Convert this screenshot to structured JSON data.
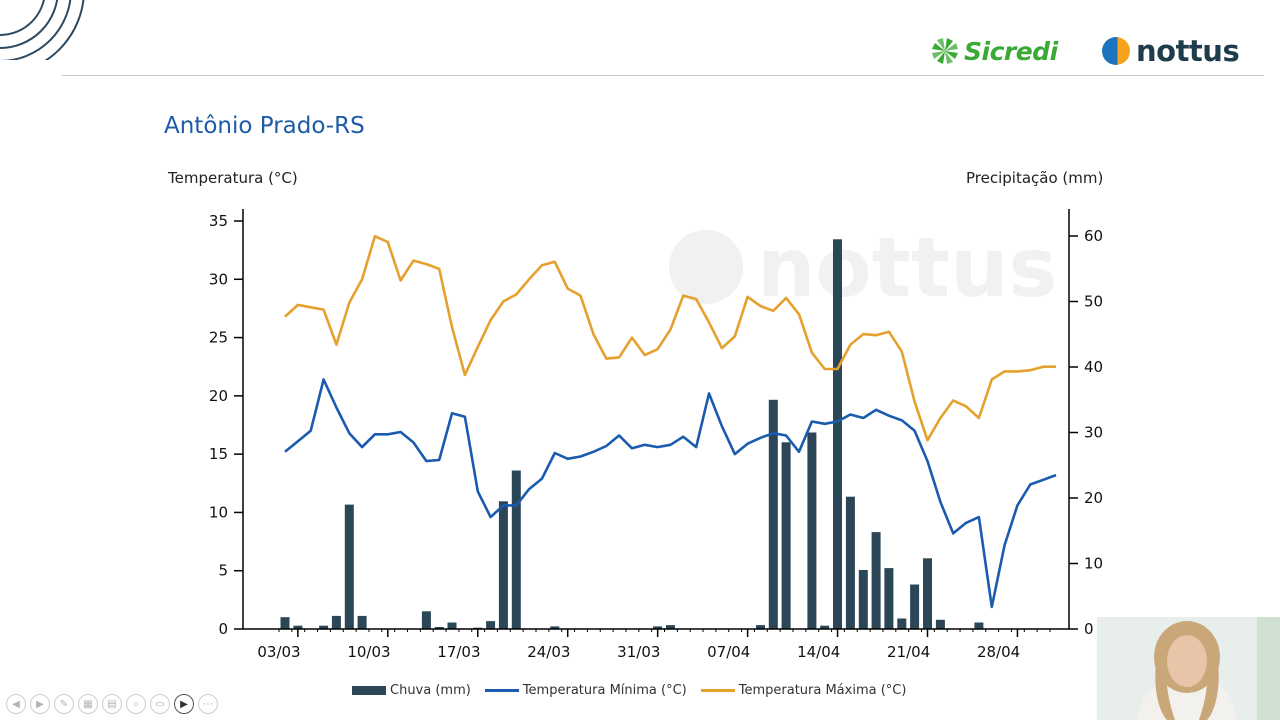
{
  "header": {
    "brand_sicredi": "Sicredi",
    "brand_nottus": "nottus",
    "watermark": "nottus",
    "colors": {
      "sicredi_green": "#3aa935",
      "nottus_navy": "#1f3c4d",
      "nottus_orange": "#f5a31a",
      "nottus_blue": "#1e73be"
    }
  },
  "page": {
    "title": "Antônio Prado-RS"
  },
  "chart_data": {
    "type": "bar+line",
    "title": "Antônio Prado-RS",
    "ylabel_left": "Temperatura (°C)",
    "ylabel_right": "Precipitação (mm)",
    "ylim_left": [
      0,
      35
    ],
    "ylim_right": [
      0,
      63
    ],
    "yticks_left": [
      0,
      5,
      10,
      15,
      20,
      25,
      30,
      35
    ],
    "yticks_right": [
      0,
      10,
      20,
      30,
      40,
      50,
      60
    ],
    "x_tick_labels": [
      "03/03",
      "10/03",
      "17/03",
      "24/03",
      "31/03",
      "07/04",
      "14/04",
      "21/04",
      "28/04"
    ],
    "grid": false,
    "legend_position": "bottom",
    "x_dates": [
      "03/03",
      "04/03",
      "05/03",
      "06/03",
      "07/03",
      "08/03",
      "09/03",
      "10/03",
      "11/03",
      "12/03",
      "13/03",
      "14/03",
      "15/03",
      "16/03",
      "17/03",
      "18/03",
      "19/03",
      "20/03",
      "21/03",
      "22/03",
      "23/03",
      "24/03",
      "25/03",
      "26/03",
      "27/03",
      "28/03",
      "29/03",
      "30/03",
      "31/03",
      "01/04",
      "02/04",
      "03/04",
      "04/04",
      "05/04",
      "06/04",
      "07/04",
      "08/04",
      "09/04",
      "10/04",
      "11/04",
      "12/04",
      "13/04",
      "14/04",
      "15/04",
      "16/04",
      "17/04",
      "18/04",
      "19/04",
      "20/04",
      "21/04",
      "22/04",
      "23/04",
      "24/04",
      "25/04",
      "26/04",
      "27/04",
      "28/04",
      "29/04",
      "30/04",
      "01/05",
      "02/05"
    ],
    "series": [
      {
        "name": "Chuva (mm)",
        "axis": "right",
        "kind": "bar",
        "color": "#2b4657",
        "values": [
          1.8,
          0.5,
          0,
          0.5,
          2,
          19,
          2,
          0,
          0,
          0,
          0,
          2.7,
          0.3,
          1,
          0,
          0.2,
          1.2,
          19.5,
          24.2,
          0,
          0,
          0.4,
          0,
          0,
          0,
          0,
          0,
          0,
          0,
          0.4,
          0.6,
          0,
          0,
          0,
          0,
          0,
          0,
          0.6,
          35,
          28.5,
          0,
          30,
          0.5,
          59.5,
          20.2,
          9,
          14.8,
          9.3,
          1.6,
          6.8,
          10.8,
          1.4,
          0,
          0,
          1,
          0,
          0,
          0,
          0,
          0,
          0
        ]
      },
      {
        "name": "Temperatura Mínima (°C)",
        "axis": "left",
        "kind": "line",
        "color": "#1a5bb0",
        "values": [
          15.2,
          16.1,
          17,
          21.4,
          19,
          16.8,
          15.6,
          16.7,
          16.7,
          16.9,
          16,
          14.4,
          14.5,
          18.5,
          18.2,
          11.8,
          9.6,
          10.6,
          10.6,
          12,
          12.9,
          15.1,
          14.6,
          14.8,
          15.2,
          15.7,
          16.6,
          15.5,
          15.8,
          15.6,
          15.8,
          16.5,
          15.6,
          20.2,
          17.4,
          15,
          15.9,
          16.4,
          16.8,
          16.6,
          15.2,
          17.8,
          17.6,
          17.8,
          18.4,
          18.1,
          18.8,
          18.3,
          17.9,
          17,
          14.4,
          10.9,
          8.2,
          9.1,
          9.6,
          1.9,
          7.2,
          10.6,
          12.4,
          12.8,
          13.2
        ]
      },
      {
        "name": "Temperatura Máxima (°C)",
        "axis": "left",
        "kind": "line",
        "color": "#e5a02e",
        "values": [
          26.8,
          27.8,
          27.6,
          27.4,
          24.4,
          28,
          30,
          33.7,
          33.2,
          29.9,
          31.6,
          31.3,
          30.9,
          25.9,
          21.8,
          24.2,
          26.5,
          28.1,
          28.7,
          30,
          31.2,
          31.5,
          29.2,
          28.6,
          25.3,
          23.2,
          23.3,
          25,
          23.5,
          24,
          25.7,
          28.6,
          28.3,
          26.3,
          24.1,
          25.1,
          28.5,
          27.7,
          27.3,
          28.4,
          27,
          23.7,
          22.3,
          22.3,
          24.4,
          25.3,
          25.2,
          25.5,
          23.8,
          19.5,
          16.2,
          18.1,
          19.6,
          19.1,
          18.1,
          21.4,
          22.1,
          22.1,
          22.2,
          22.5,
          22.5
        ]
      }
    ]
  },
  "legend": {
    "rain": "Chuva (mm)",
    "tmin": "Temperatura Mínima (°C)",
    "tmax": "Temperatura Máxima (°C)"
  },
  "controls": [
    "prev-icon",
    "next-icon",
    "pen-icon",
    "eraser-icon",
    "grid-icon",
    "zoom-icon",
    "slides-icon",
    "camera-icon",
    "more-icon"
  ]
}
